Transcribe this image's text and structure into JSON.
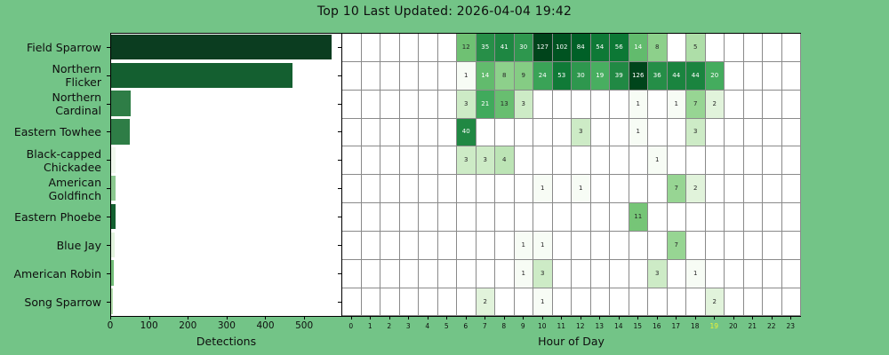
{
  "title": "Top 10 Last Updated: 2026-04-04 19:42",
  "colors": {
    "figure_background": "#73c487",
    "plot_background": "#ffffff",
    "spine": "#000000",
    "grid_line": "#8a8a8a",
    "text": "#0e0e0e",
    "current_hour_highlight": "#edf335",
    "cell_text_light": "#ffffff",
    "cell_text_dark": "#262626"
  },
  "chart_data": [
    {
      "type": "bar",
      "orientation": "horizontal",
      "xlabel": "Detections",
      "categories": [
        "Field Sparrow",
        "Northern\nFlicker",
        "Northern\nCardinal",
        "Eastern Towhee",
        "Black-capped\nChickadee",
        "American\nGoldfinch",
        "Eastern Phoebe",
        "Blue Jay",
        "American Robin",
        "Song Sparrow"
      ],
      "values": [
        568,
        467,
        51,
        47,
        11,
        11,
        11,
        9,
        8,
        5
      ],
      "bar_colors": [
        "#0b3d20",
        "#145f30",
        "#2e7d46",
        "#2e7d46",
        "#f0f8ed",
        "#8bc88f",
        "#136030",
        "#e2f3dd",
        "#72bd78",
        "#b5dfae"
      ],
      "xlim": [
        0,
        596
      ],
      "xticks": [
        0,
        100,
        200,
        300,
        400,
        500
      ],
      "grid": false
    },
    {
      "type": "heatmap",
      "xlabel": "Hour of Day",
      "xticks": [
        0,
        1,
        2,
        3,
        4,
        5,
        6,
        7,
        8,
        9,
        10,
        11,
        12,
        13,
        14,
        15,
        16,
        17,
        18,
        19,
        20,
        21,
        22,
        23
      ],
      "highlighted_hour": 19,
      "colormap": "Greens",
      "colormap_stops": {
        "positions": [
          0,
          0.125,
          0.25,
          0.375,
          0.5,
          0.625,
          0.75,
          0.875,
          1
        ],
        "colors": [
          "#f7fcf5",
          "#e5f5e0",
          "#c7e9c0",
          "#a1d99b",
          "#74c476",
          "#41ab5d",
          "#238b45",
          "#006d2c",
          "#00441b"
        ]
      },
      "norm": "log",
      "vmin": 1,
      "vmax": 127,
      "rows": [
        {
          "species": "Field Sparrow",
          "values": {
            "6": 12,
            "7": 35,
            "8": 41,
            "9": 30,
            "10": 127,
            "11": 102,
            "12": 84,
            "13": 54,
            "14": 56,
            "15": 14,
            "16": 8,
            "18": 5
          }
        },
        {
          "species": "Northern Flicker",
          "values": {
            "6": 1,
            "7": 14,
            "8": 8,
            "9": 9,
            "10": 24,
            "11": 53,
            "12": 30,
            "13": 19,
            "14": 39,
            "15": 126,
            "16": 36,
            "17": 44,
            "18": 44,
            "19": 20
          }
        },
        {
          "species": "Northern Cardinal",
          "values": {
            "6": 3,
            "7": 21,
            "8": 13,
            "9": 3,
            "15": 1,
            "17": 1,
            "18": 7,
            "19": 2
          }
        },
        {
          "species": "Eastern Towhee",
          "values": {
            "6": 40,
            "12": 3,
            "15": 1,
            "18": 3
          }
        },
        {
          "species": "Black-capped Chickadee",
          "values": {
            "6": 3,
            "7": 3,
            "8": 4,
            "16": 1
          }
        },
        {
          "species": "American Goldfinch",
          "values": {
            "10": 1,
            "12": 1,
            "17": 7,
            "18": 2
          }
        },
        {
          "species": "Eastern Phoebe",
          "values": {
            "15": 11
          }
        },
        {
          "species": "Blue Jay",
          "values": {
            "9": 1,
            "10": 1,
            "17": 7
          }
        },
        {
          "species": "American Robin",
          "values": {
            "9": 1,
            "10": 3,
            "16": 3,
            "18": 1
          }
        },
        {
          "species": "Song Sparrow",
          "values": {
            "7": 2,
            "10": 1,
            "19": 2
          }
        }
      ]
    }
  ]
}
